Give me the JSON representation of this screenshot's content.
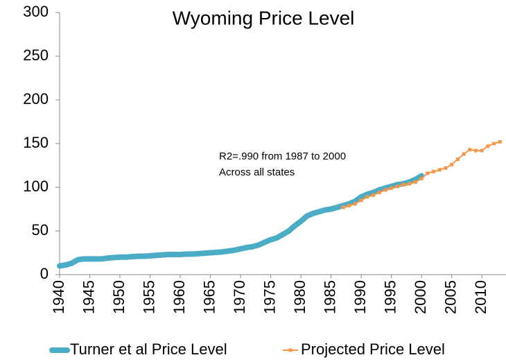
{
  "chart_data": {
    "type": "line",
    "title": "Wyoming Price Level",
    "annotation": [
      "R2=.990 from 1987 to 2000",
      "Across all states"
    ],
    "xlim": [
      1940,
      2014
    ],
    "xticks": [
      1940,
      1945,
      1950,
      1955,
      1960,
      1965,
      1970,
      1975,
      1980,
      1985,
      1990,
      1995,
      2000,
      2005,
      2010
    ],
    "ylim": [
      0,
      300
    ],
    "yticks": [
      0,
      50,
      100,
      150,
      200,
      250,
      300
    ],
    "grid": false,
    "legend": "bottom",
    "series": [
      {
        "name": "Turner et al Price Level",
        "color": "#4bacc6",
        "x": [
          1940,
          1941,
          1942,
          1943,
          1944,
          1945,
          1946,
          1947,
          1948,
          1949,
          1950,
          1951,
          1952,
          1953,
          1954,
          1955,
          1956,
          1957,
          1958,
          1959,
          1960,
          1961,
          1962,
          1963,
          1964,
          1965,
          1966,
          1967,
          1968,
          1969,
          1970,
          1971,
          1972,
          1973,
          1974,
          1975,
          1976,
          1977,
          1978,
          1979,
          1980,
          1981,
          1982,
          1983,
          1984,
          1985,
          1986,
          1987,
          1988,
          1989,
          1990,
          1991,
          1992,
          1993,
          1994,
          1995,
          1996,
          1997,
          1998,
          1999,
          2000
        ],
        "values": [
          10,
          11,
          13,
          17,
          18,
          18,
          18,
          18,
          19,
          19.5,
          20,
          20,
          20.5,
          21,
          21,
          21.5,
          22,
          22.5,
          23,
          23,
          23,
          23.5,
          23.5,
          24,
          24.5,
          25,
          25.5,
          26,
          27,
          28,
          29.5,
          31,
          32,
          34,
          37,
          40,
          42,
          46,
          50,
          56,
          61,
          67,
          70,
          72,
          74,
          75,
          77,
          79,
          81,
          84,
          89,
          92,
          94,
          97,
          99,
          101,
          103,
          104,
          106,
          109,
          113
        ]
      },
      {
        "name": "Projected Price Level",
        "color": "#f79646",
        "x": [
          1987,
          1988,
          1989,
          1990,
          1991,
          1992,
          1993,
          1994,
          1995,
          1996,
          1997,
          1998,
          1999,
          2000,
          2001,
          2002,
          2003,
          2004,
          2005,
          2006,
          2007,
          2008,
          2009,
          2010,
          2011,
          2012,
          2013
        ],
        "values": [
          77,
          79,
          81,
          85,
          89,
          91,
          94,
          97,
          99,
          101,
          103,
          104,
          106,
          110,
          116,
          118,
          120,
          122,
          126,
          132,
          138,
          143,
          142,
          142,
          147,
          150,
          152
        ]
      }
    ]
  }
}
